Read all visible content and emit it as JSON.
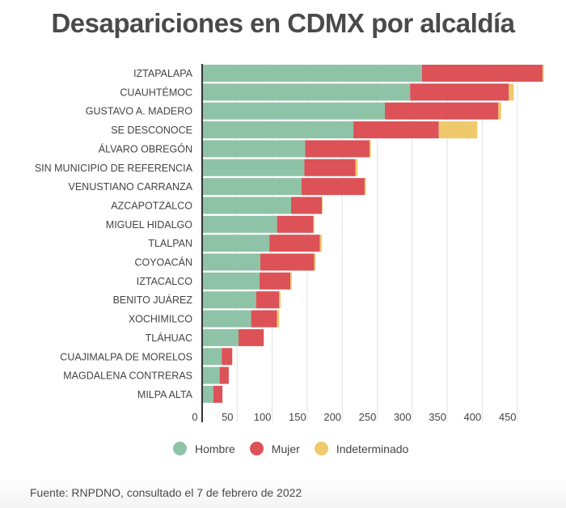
{
  "chart_data": {
    "type": "bar",
    "orientation": "horizontal",
    "stacked": true,
    "title": "Desapariciones en CDMX por alcaldía",
    "xlabel": "",
    "ylabel": "",
    "xlim": [
      0,
      500
    ],
    "xticks": [
      0,
      50,
      100,
      150,
      200,
      250,
      300,
      350,
      400,
      450
    ],
    "grid": true,
    "legend_position": "bottom",
    "categories": [
      "IZTAPALAPA",
      "CUAUHTÉMOC",
      "GUSTAVO A. MADERO",
      "SE DESCONOCE",
      "ÁLVARO OBREGÓN",
      "SIN MUNICIPIO DE REFERENCIA",
      "VENUSTIANO CARRANZA",
      "AZCAPOTZALCO",
      "MIGUEL HIDALGO",
      "TLALPAN",
      "COYOACÁN",
      "IZTACALCO",
      "BENITO JUÁREZ",
      "XOCHIMILCO",
      "TLÁHUAC",
      "CUAJIMALPA DE MORELOS",
      "MAGDALENA CONTRERAS",
      "MILPA ALTA"
    ],
    "series": [
      {
        "name": "Hombre",
        "color": "#8fc3a8",
        "values": [
          314,
          297,
          261,
          216,
          147,
          146,
          142,
          127,
          107,
          96,
          83,
          82,
          77,
          70,
          52,
          28,
          25,
          16
        ]
      },
      {
        "name": "Mujer",
        "color": "#dc5257",
        "values": [
          172,
          141,
          162,
          122,
          92,
          73,
          90,
          44,
          52,
          72,
          77,
          44,
          33,
          37,
          36,
          15,
          13,
          13
        ]
      },
      {
        "name": "Indeterminado",
        "color": "#efc96b",
        "values": [
          2,
          7,
          4,
          55,
          2,
          3,
          2,
          1,
          1,
          3,
          2,
          2,
          2,
          3,
          0,
          0,
          0,
          0
        ]
      }
    ]
  },
  "source": "Fuente: RNPDNO, consultado el 7 de febrero de 2022"
}
